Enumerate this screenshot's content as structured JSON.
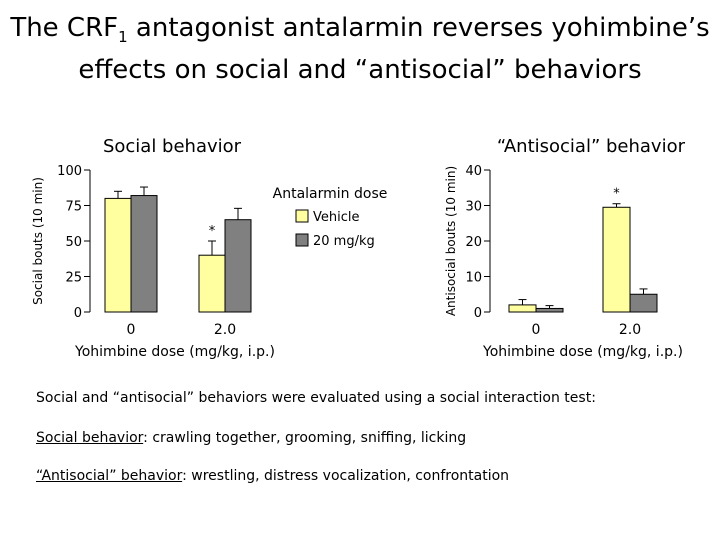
{
  "title": {
    "part1": "The CRF",
    "sub": "1",
    "part2": " antagonist antalarmin reverses yohimbine’s",
    "line2": "effects on social and “antisocial” behaviors"
  },
  "chart_data": [
    {
      "type": "bar",
      "title": "Social behavior",
      "ylabel": "Social bouts (10 min)",
      "xlabel": "Yohimbine dose (mg/kg, i.p.)",
      "categories": [
        "0",
        "2.0"
      ],
      "ylim": [
        0,
        100
      ],
      "yticks": [
        "0",
        "25",
        "50",
        "75",
        "100"
      ],
      "legend_title": "Antalarmin dose",
      "series": [
        {
          "name": "Vehicle",
          "color": "#ffffa0",
          "values": [
            80,
            40
          ],
          "errors": [
            5,
            10
          ]
        },
        {
          "name": "20 mg/kg",
          "color": "#808080",
          "values": [
            82,
            65
          ],
          "errors": [
            6,
            8
          ]
        }
      ],
      "annotations": [
        {
          "category": "2.0",
          "series": "Vehicle",
          "text": "*"
        }
      ]
    },
    {
      "type": "bar",
      "title": "“Antisocial” behavior",
      "ylabel": "Antisocial bouts (10 min)",
      "xlabel": "Yohimbine dose (mg/kg, i.p.)",
      "categories": [
        "0",
        "2.0"
      ],
      "ylim": [
        0,
        40
      ],
      "yticks": [
        "0",
        "10",
        "20",
        "30",
        "40"
      ],
      "series": [
        {
          "name": "Vehicle",
          "color": "#ffffa0",
          "values": [
            2,
            29.5
          ],
          "errors": [
            1.5,
            1
          ]
        },
        {
          "name": "20 mg/kg",
          "color": "#808080",
          "values": [
            1,
            5
          ],
          "errors": [
            0.8,
            1.5
          ]
        }
      ],
      "annotations": [
        {
          "category": "2.0",
          "series": "Vehicle",
          "text": "*"
        }
      ]
    }
  ],
  "notes": {
    "intro": "Social and “antisocial” behaviors were evaluated using a social interaction test:",
    "social_label": "Social behavior",
    "social_text": ": crawling together, grooming, sniffing, licking",
    "antisocial_label": "“Antisocial” behavior",
    "antisocial_text": ": wrestling, distress vocalization, confrontation"
  }
}
